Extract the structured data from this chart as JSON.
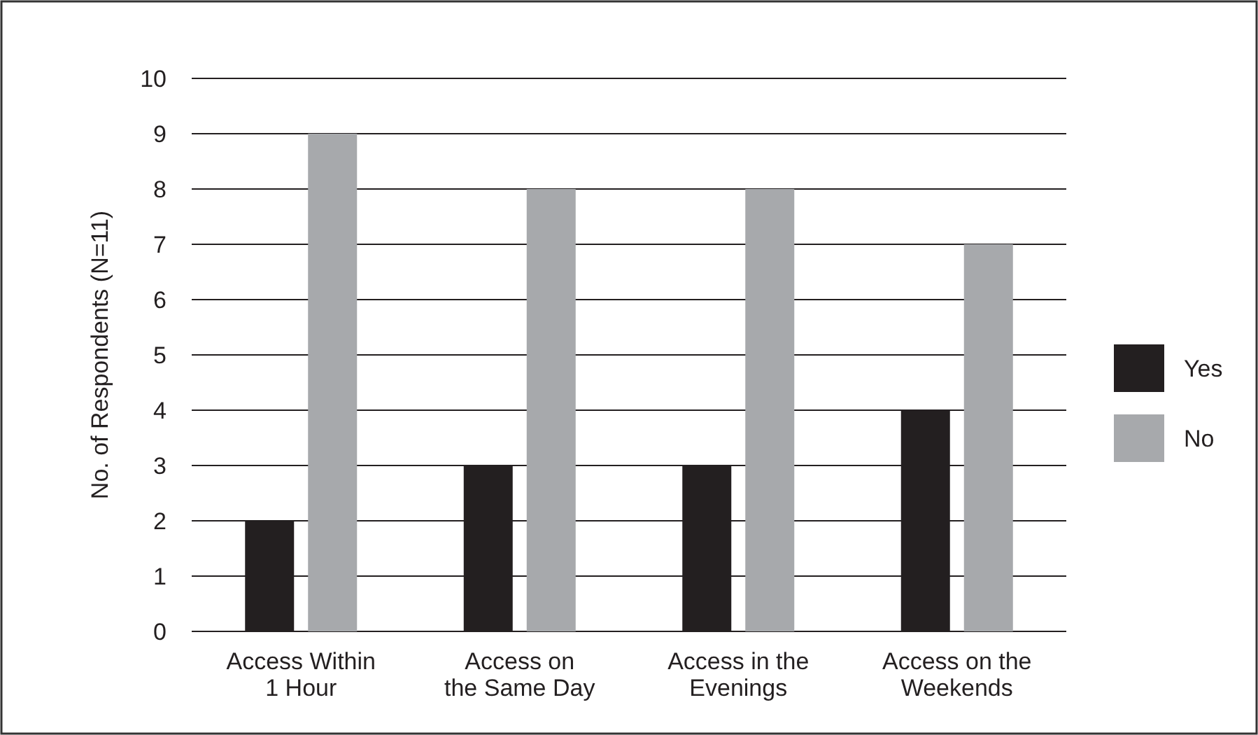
{
  "chart_data": {
    "type": "bar",
    "ylabel": "No. of Respondents (N=11)",
    "categories": [
      "Access Within\n1 Hour",
      "Access on\nthe Same Day",
      "Access in the\nEvenings",
      "Access on the\nWeekends"
    ],
    "series": [
      {
        "name": "Yes",
        "color": "#231f20",
        "values": [
          2,
          3,
          3,
          4
        ]
      },
      {
        "name": "No",
        "color": "#a7a9ac",
        "values": [
          9,
          8,
          8,
          7
        ]
      }
    ],
    "ylim": [
      0,
      10
    ],
    "yticks": [
      0,
      1,
      2,
      3,
      4,
      5,
      6,
      7,
      8,
      9,
      10
    ],
    "grid": "y",
    "legend": "right"
  }
}
